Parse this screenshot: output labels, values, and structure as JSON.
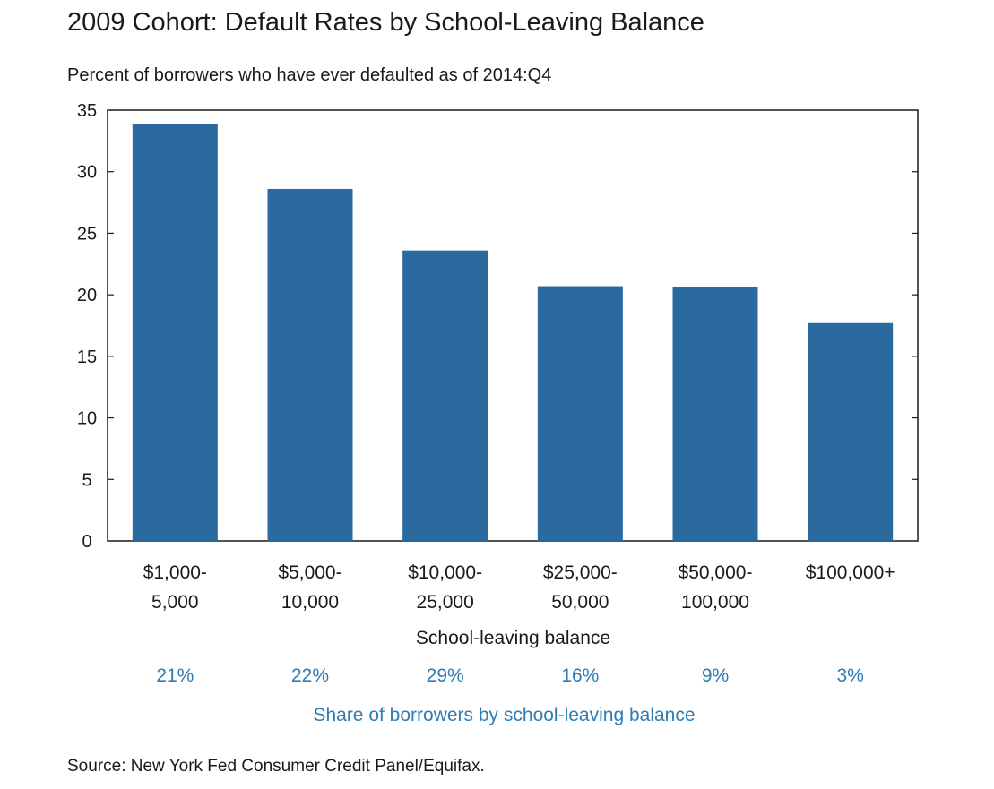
{
  "chart_data": {
    "type": "bar",
    "title": "2009 Cohort: Default Rates by School-Leaving Balance",
    "subtitle": "Percent of borrowers who have ever defaulted as of 2014:Q4",
    "categories": [
      [
        "$1,000-",
        "5,000"
      ],
      [
        "$5,000-",
        "10,000"
      ],
      [
        "$10,000-",
        "25,000"
      ],
      [
        "$25,000-",
        "50,000"
      ],
      [
        "$50,000-",
        "100,000"
      ],
      [
        "$100,000+"
      ]
    ],
    "values": [
      33.9,
      28.6,
      23.6,
      20.7,
      20.6,
      17.7
    ],
    "ylim": [
      0,
      35
    ],
    "yticks": [
      "0",
      "5",
      "10",
      "15",
      "20",
      "25",
      "30",
      "35"
    ],
    "xlabel": "School-leaving  balance",
    "bar_color": "#2a6a9e",
    "share": {
      "values": [
        "21%",
        "22%",
        "29%",
        "16%",
        "9%",
        "3%"
      ],
      "label": "Share of borrowers by school-leaving balance",
      "color": "#2f7cb3"
    },
    "source": "Source: New York Fed Consumer Credit Panel/Equifax.",
    "grid": false,
    "legend": "none"
  }
}
